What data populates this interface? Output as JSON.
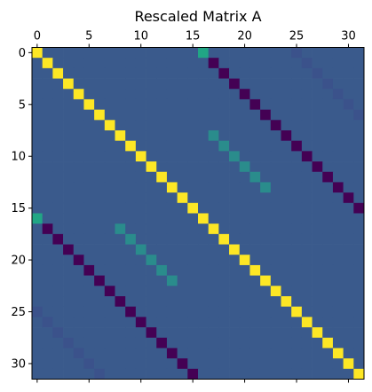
{
  "chart_data": {
    "type": "heatmap",
    "title": "Rescaled Matrix A",
    "size": 32,
    "colormap": "viridis",
    "background_value": 0,
    "color_stops": {
      "min": "#440154",
      "neg_small": "#3b528b",
      "zero": "#3a5a8c",
      "pos_mid": "#21a685",
      "max": "#fde725"
    },
    "x_ticks": [
      "0",
      "5",
      "10",
      "15",
      "20",
      "25",
      "30"
    ],
    "y_ticks": [
      "0",
      "5",
      "10",
      "15",
      "20",
      "25",
      "30"
    ],
    "x_tick_values": [
      0,
      5,
      10,
      15,
      20,
      25,
      30
    ],
    "y_tick_values": [
      0,
      5,
      10,
      15,
      20,
      25,
      30
    ],
    "x_axis_position": "top",
    "grid": false,
    "bands": [
      {
        "name": "main diagonal",
        "row_start": 0,
        "col_start": 0,
        "length": 32,
        "value": 1.0
      },
      {
        "name": "upper block diagonal",
        "row_start": 0,
        "col_start": 16,
        "length": 16,
        "value_first": 0.45,
        "value_rest": -0.6
      },
      {
        "name": "upper inner diagonal",
        "row_start": 8,
        "col_start": 17,
        "length": 6,
        "value": 0.3
      },
      {
        "name": "upper far diagonal",
        "row_start": 0,
        "col_start": 25,
        "length": 7,
        "value": -0.05
      },
      {
        "name": "lower block diagonal",
        "row_start": 16,
        "col_start": 0,
        "length": 16,
        "value_first": 0.45,
        "value_rest": -0.6
      },
      {
        "name": "lower inner diagonal",
        "row_start": 17,
        "col_start": 8,
        "length": 6,
        "value": 0.3
      },
      {
        "name": "lower far diagonal",
        "row_start": 25,
        "col_start": 0,
        "length": 7,
        "value": -0.05
      }
    ]
  }
}
